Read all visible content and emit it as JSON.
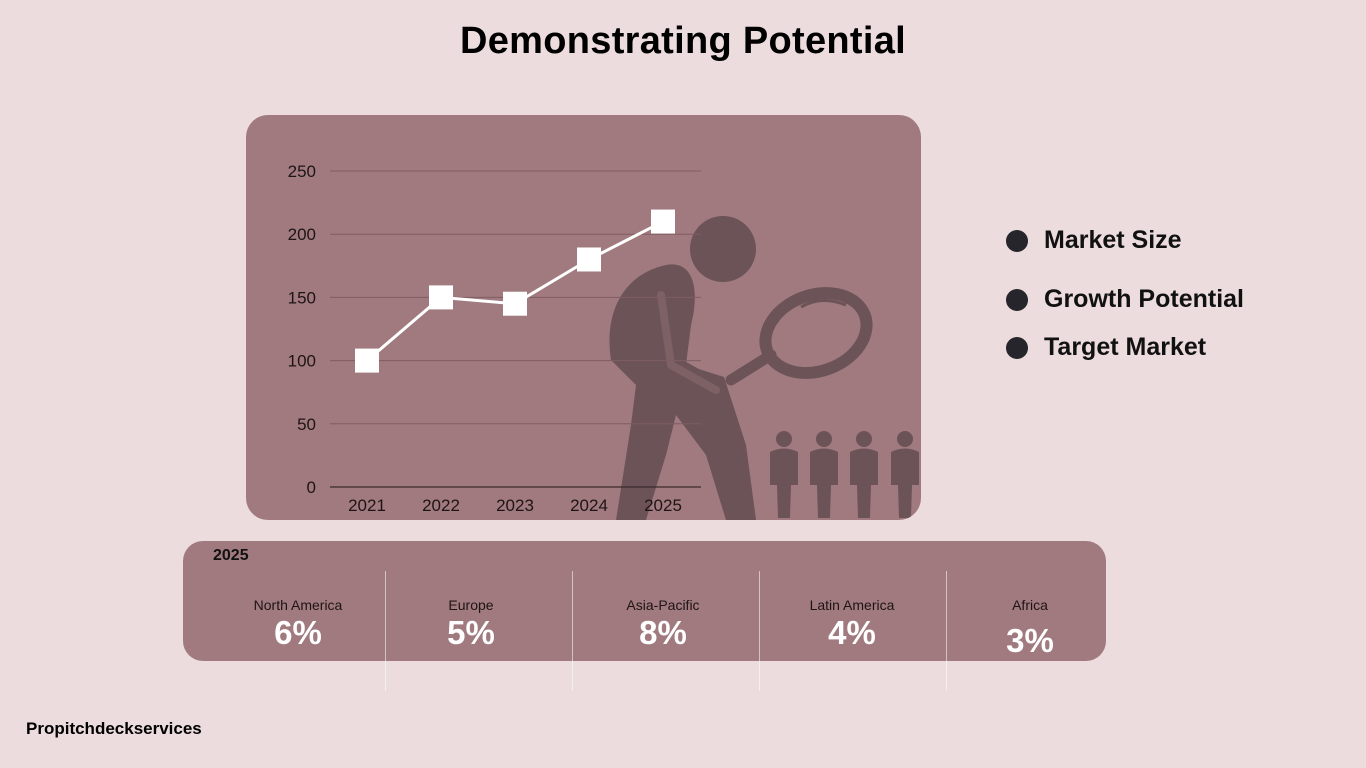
{
  "page": {
    "title": "Demonstrating Potential",
    "footer": "Propitchdeckservices"
  },
  "colors": {
    "background": "#ecdcdd",
    "panel": "#a07a7e",
    "illustration": "#6b5358",
    "line": "#ffffff",
    "legend_dot": "#25252b"
  },
  "chart_data": {
    "type": "line",
    "categories": [
      "2021",
      "2022",
      "2023",
      "2024",
      "2025"
    ],
    "values": [
      100,
      150,
      145,
      180,
      210
    ],
    "ylim": [
      0,
      250
    ],
    "yticks": [
      0,
      50,
      100,
      150,
      200,
      250
    ],
    "grid": true,
    "marker": "square",
    "title": "",
    "xlabel": "",
    "ylabel": ""
  },
  "legend": {
    "items": [
      {
        "label": "Market Size"
      },
      {
        "label": "Growth Potential"
      },
      {
        "label": "Target Market"
      }
    ]
  },
  "regions": {
    "year": "2025",
    "items": [
      {
        "name": "North America",
        "value": "6%"
      },
      {
        "name": "Europe",
        "value": "5%"
      },
      {
        "name": "Asia-Pacific",
        "value": "8%"
      },
      {
        "name": "Latin America",
        "value": "4%"
      },
      {
        "name": "Africa",
        "value": "3%"
      }
    ]
  }
}
